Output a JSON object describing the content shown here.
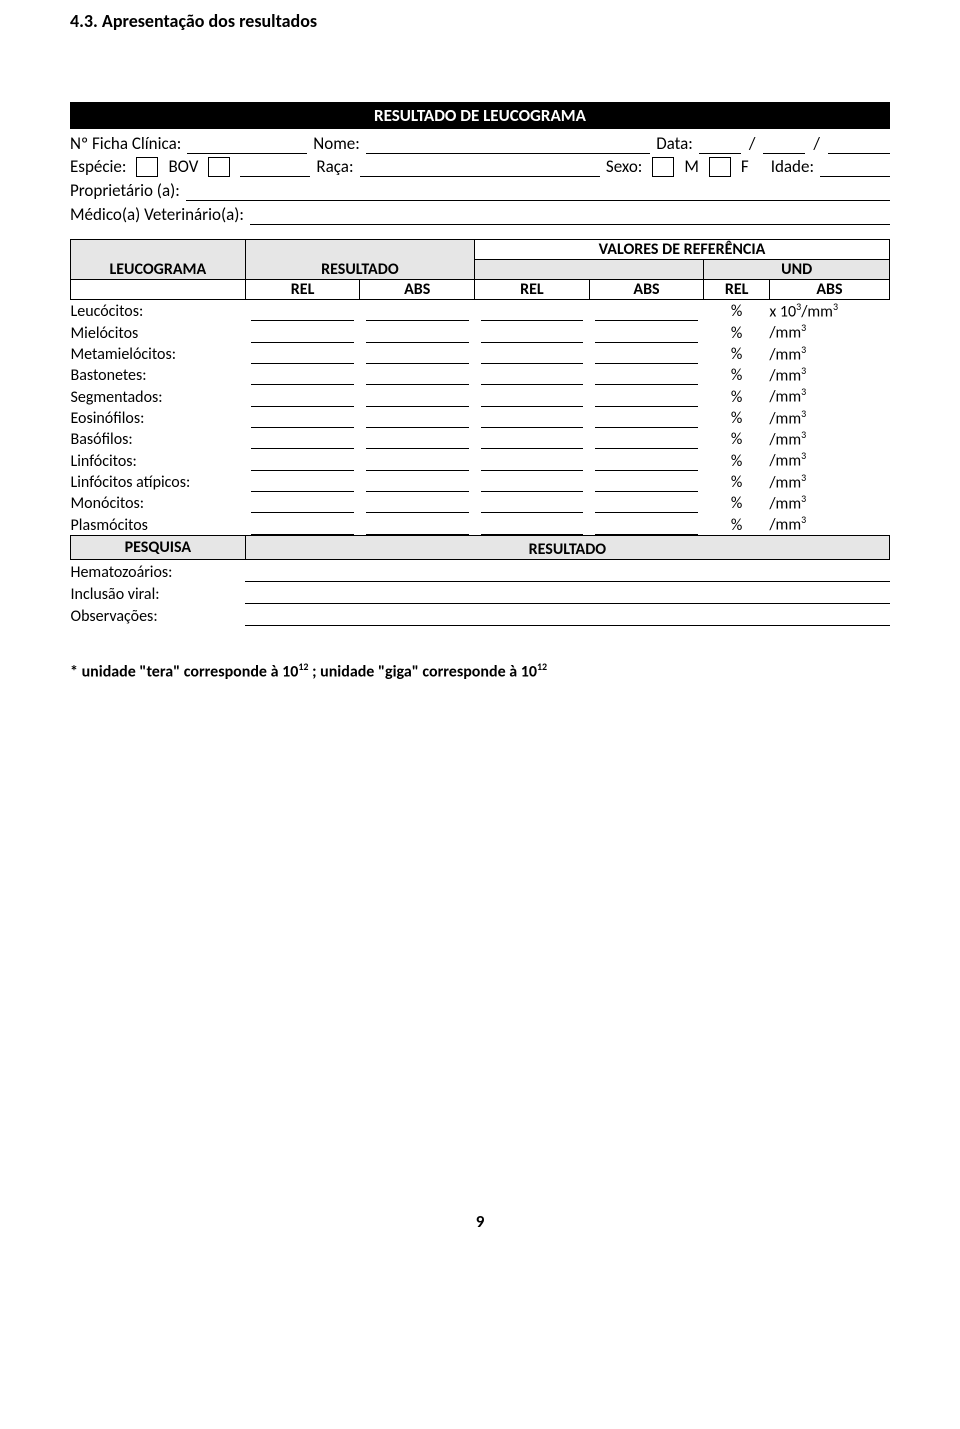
{
  "section_title": "4.3. Apresentação dos resultados",
  "bar_title": "RESULTADO DE LEUCOGRAMA",
  "form": {
    "ficha": "Nº Ficha Clínica:",
    "nome": "Nome:",
    "data": "Data:",
    "especie": "Espécie:",
    "bov": "BOV",
    "raca": "Raça:",
    "sexo": "Sexo:",
    "m": "M",
    "f": "F",
    "idade": "Idade:",
    "proprietario": "Proprietário (a):",
    "medico": "Médico(a) Veterinário(a):"
  },
  "table": {
    "leucograma": "LEUCOGRAMA",
    "resultado": "RESULTADO",
    "valores_ref": "VALORES DE REFERÊNCIA",
    "und": "UND",
    "rel": "REL",
    "abs": "ABS",
    "pct": "%",
    "rows": [
      {
        "label": "Leucócitos:",
        "unit_prefix": "x 10",
        "unit_sup1": "3",
        "unit_mid": "/mm",
        "unit_sup2": "3"
      },
      {
        "label": "Mielócitos",
        "unit_prefix": "",
        "unit_sup1": "",
        "unit_mid": "/mm",
        "unit_sup2": "3"
      },
      {
        "label": "Metamielócitos:",
        "unit_prefix": "",
        "unit_sup1": "",
        "unit_mid": "/mm",
        "unit_sup2": "3"
      },
      {
        "label": "Bastonetes:",
        "unit_prefix": "",
        "unit_sup1": "",
        "unit_mid": "/mm",
        "unit_sup2": "3"
      },
      {
        "label": "Segmentados:",
        "unit_prefix": "",
        "unit_sup1": "",
        "unit_mid": "/mm",
        "unit_sup2": "3"
      },
      {
        "label": "Eosinófilos:",
        "unit_prefix": "",
        "unit_sup1": "",
        "unit_mid": "/mm",
        "unit_sup2": "3"
      },
      {
        "label": "Basófilos:",
        "unit_prefix": "",
        "unit_sup1": "",
        "unit_mid": "/mm",
        "unit_sup2": "3"
      },
      {
        "label": "Linfócitos:",
        "unit_prefix": "",
        "unit_sup1": "",
        "unit_mid": "/mm",
        "unit_sup2": "3"
      },
      {
        "label": "Linfócitos atípicos:",
        "unit_prefix": "",
        "unit_sup1": "",
        "unit_mid": "/mm",
        "unit_sup2": "3"
      },
      {
        "label": "Monócitos:",
        "unit_prefix": "",
        "unit_sup1": "",
        "unit_mid": "/mm",
        "unit_sup2": "3"
      },
      {
        "label": "Plasmócitos",
        "unit_prefix": "",
        "unit_sup1": "",
        "unit_mid": "/mm",
        "unit_sup2": "3"
      }
    ],
    "pesquisa": "PESQUISA",
    "pesquisa_rows": [
      "Hematozoários:",
      "Inclusão viral:",
      "Observações:"
    ]
  },
  "footnote": {
    "p1": "* unidade \"tera\" corresponde à  10",
    "s1": "12",
    "p2": " ; unidade \"giga\" corresponde à 10",
    "s2": "12"
  },
  "page_number": "9"
}
